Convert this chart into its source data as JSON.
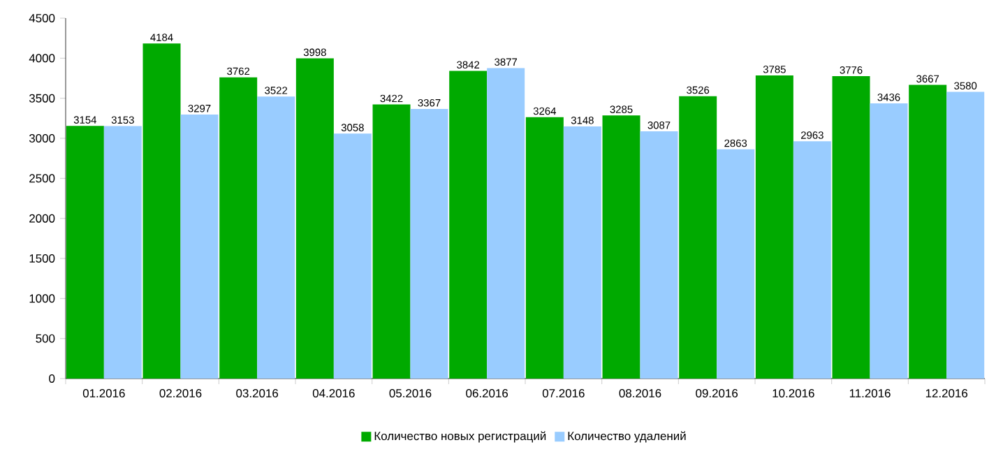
{
  "chart_data": {
    "type": "bar",
    "categories": [
      "01.2016",
      "02.2016",
      "03.2016",
      "04.2016",
      "05.2016",
      "06.2016",
      "07.2016",
      "08.2016",
      "09.2016",
      "10.2016",
      "11.2016",
      "12.2016"
    ],
    "series": [
      {
        "name": "Количество новых регистраций",
        "color": "#00aa00",
        "values": [
          3154,
          4184,
          3762,
          3998,
          3422,
          3842,
          3264,
          3285,
          3526,
          3785,
          3776,
          3667
        ]
      },
      {
        "name": "Количество удалений",
        "color": "#99ccff",
        "values": [
          3153,
          3297,
          3522,
          3058,
          3367,
          3877,
          3148,
          3087,
          2863,
          2963,
          3436,
          3580
        ]
      }
    ],
    "ylim": [
      0,
      4500
    ],
    "yticks": [
      0,
      500,
      1000,
      1500,
      2000,
      2500,
      3000,
      3500,
      4000,
      4500
    ],
    "grid": false,
    "legend": "bottom",
    "data_labels": true
  }
}
